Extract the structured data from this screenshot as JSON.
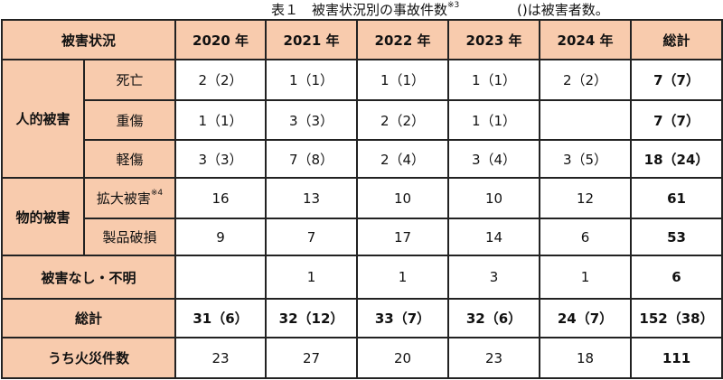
{
  "title": {
    "main": "表１　被害状況別の事故件数",
    "main_note": "※3",
    "sub": "()は被害者数。"
  },
  "header": {
    "category": "被害状況",
    "years": [
      "2020 年",
      "2021 年",
      "2022 年",
      "2023 年",
      "2024 年"
    ],
    "total": "総計"
  },
  "groups": {
    "human": "人的被害",
    "property": "物的被害"
  },
  "rows": [
    {
      "label": "死亡",
      "values": [
        "2（2）",
        "1（1）",
        "1（1）",
        "1（1）",
        "2（2）"
      ],
      "total": "7（7）"
    },
    {
      "label": "重傷",
      "values": [
        "1（1）",
        "3（3）",
        "2（2）",
        "1（1）",
        ""
      ],
      "total": "7（7）"
    },
    {
      "label": "軽傷",
      "values": [
        "3（3）",
        "7（8）",
        "2（4）",
        "3（4）",
        "3（5）"
      ],
      "total": "18（24）"
    },
    {
      "label": "拡大被害",
      "note": "※4",
      "values": [
        "16",
        "13",
        "10",
        "10",
        "12"
      ],
      "total": "61"
    },
    {
      "label": "製品破損",
      "values": [
        "9",
        "7",
        "17",
        "14",
        "6"
      ],
      "total": "53"
    },
    {
      "label": "被害なし・不明",
      "values": [
        "",
        "1",
        "1",
        "3",
        "1"
      ],
      "total": "6"
    },
    {
      "label": "総計",
      "values": [
        "31（6）",
        "32（12）",
        "33（7）",
        "32（6）",
        "24（7）"
      ],
      "total": "152（38）"
    },
    {
      "label": "うち火災件数",
      "values": [
        "23",
        "27",
        "20",
        "23",
        "18"
      ],
      "total": "111"
    }
  ],
  "colors": {
    "header_fill": "#f8cbad",
    "border": "#222222"
  }
}
